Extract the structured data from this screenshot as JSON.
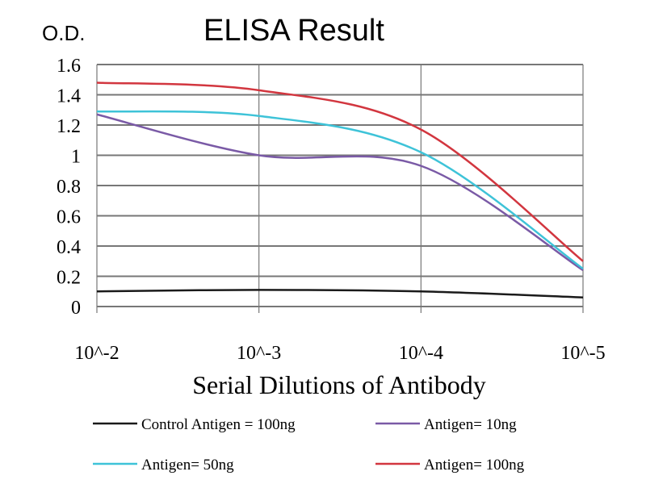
{
  "chart_data": {
    "type": "line",
    "title": "ELISA Result",
    "ylabel": "O.D.",
    "xlabel": "Serial Dilutions of Antibody",
    "categories": [
      "10^-2",
      "10^-3",
      "10^-4",
      "10^-5"
    ],
    "yticks": [
      "0",
      "0.2",
      "0.4",
      "0.6",
      "0.8",
      "1",
      "1.2",
      "1.4",
      "1.6"
    ],
    "ylim": [
      0,
      1.6
    ],
    "grid": true,
    "legend_position": "bottom",
    "series": [
      {
        "name": "Control Antigen = 100ng",
        "color": "#1a1a1a",
        "values": [
          0.1,
          0.11,
          0.1,
          0.06
        ]
      },
      {
        "name": "Antigen= 10ng",
        "color": "#7a5aa6",
        "values": [
          1.27,
          1.0,
          0.93,
          0.24
        ]
      },
      {
        "name": "Antigen= 50ng",
        "color": "#3ec3d8",
        "values": [
          1.29,
          1.26,
          1.02,
          0.25
        ]
      },
      {
        "name": "Antigen= 100ng",
        "color": "#d2363f",
        "values": [
          1.48,
          1.43,
          1.17,
          0.3
        ]
      }
    ]
  }
}
